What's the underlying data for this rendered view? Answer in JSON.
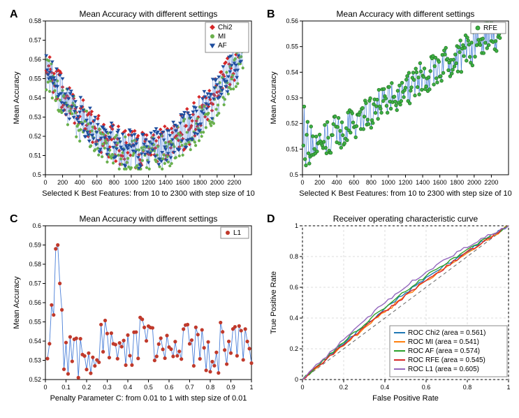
{
  "panelA": {
    "label": "A",
    "title": "Mean Accuracy with different settings",
    "xlabel": "Selected K Best Features: from 10 to 2300 with step size of 10",
    "ylabel": "Mean Accuracy",
    "xlim": [
      0,
      2400
    ],
    "ylim": [
      0.5,
      0.58
    ],
    "xticks": [
      0,
      200,
      400,
      600,
      800,
      1000,
      1200,
      1400,
      1600,
      1800,
      2000,
      2200
    ],
    "yticks": [
      0.5,
      0.51,
      0.52,
      0.53,
      0.54,
      0.55,
      0.56,
      0.57,
      0.58
    ],
    "line_color": "#4a7fd8",
    "series": [
      {
        "name": "Chi2",
        "marker": "diamond",
        "color": "#d62728"
      },
      {
        "name": "MI",
        "marker": "circle",
        "color": "#6ab04c"
      },
      {
        "name": "AF",
        "marker": "triangle",
        "color": "#1f4e9e"
      }
    ],
    "legend_pos": "top-right"
  },
  "panelB": {
    "label": "B",
    "title": "Mean Accuracy with different settings",
    "xlabel": "Selected K Best Features: from 10 to 2300 with step size of 10",
    "ylabel": "Mean Accuracy",
    "xlim": [
      0,
      2400
    ],
    "ylim": [
      0.5,
      0.56
    ],
    "xticks": [
      0,
      200,
      400,
      600,
      800,
      1000,
      1200,
      1400,
      1600,
      1800,
      2000,
      2200
    ],
    "yticks": [
      0.5,
      0.51,
      0.52,
      0.53,
      0.54,
      0.55,
      0.56
    ],
    "line_color": "#4a7fd8",
    "series": [
      {
        "name": "RFE",
        "marker": "circle",
        "color": "#3cb043"
      }
    ],
    "legend_pos": "top-right"
  },
  "panelC": {
    "label": "C",
    "title": "Mean Accuracy with different settings",
    "xlabel": "Penalty Parameter C: from 0.01 to 1 with step size of 0.01",
    "ylabel": "Mean Accuracy",
    "xlim": [
      0,
      1
    ],
    "ylim": [
      0.52,
      0.6
    ],
    "xticks": [
      0,
      0.1,
      0.2,
      0.3,
      0.4,
      0.5,
      0.6,
      0.7,
      0.8,
      0.9,
      1
    ],
    "yticks": [
      0.52,
      0.53,
      0.54,
      0.55,
      0.56,
      0.57,
      0.58,
      0.59,
      0.6
    ],
    "line_color": "#4a7fd8",
    "series": [
      {
        "name": "L1",
        "marker": "circle",
        "color": "#c0392b"
      }
    ],
    "legend_pos": "top-right"
  },
  "panelD": {
    "label": "D",
    "title": "Receiver operating characteristic curve",
    "xlabel": "False Positive Rate",
    "ylabel": "True Positive Rate",
    "xlim": [
      0,
      1
    ],
    "ylim": [
      0,
      1
    ],
    "xticks": [
      0.0,
      0.2,
      0.4,
      0.6,
      0.8,
      1.0
    ],
    "yticks": [
      0.0,
      0.2,
      0.4,
      0.6,
      0.8,
      1.0
    ],
    "grid": true,
    "grid_color": "#dcdcdc",
    "diag_color": "#666666",
    "series": [
      {
        "name": "ROC  Chi2 (area = 0.561)",
        "color": "#1f77b4",
        "area": 0.561
      },
      {
        "name": "ROC  MI (area = 0.541)",
        "color": "#ff7f0e",
        "area": 0.541
      },
      {
        "name": "ROC  AF (area = 0.574)",
        "color": "#2ca02c",
        "area": 0.574
      },
      {
        "name": "ROC  RFE (area = 0.545)",
        "color": "#d62728",
        "area": 0.545
      },
      {
        "name": "ROC  L1 (area = 0.605)",
        "color": "#9467bd",
        "area": 0.605
      }
    ],
    "legend_pos": "bottom-right"
  },
  "chart_bg": "#ffffff",
  "axis_color": "#000000",
  "fontsize_title": 12,
  "fontsize_label": 11,
  "fontsize_tick": 9
}
